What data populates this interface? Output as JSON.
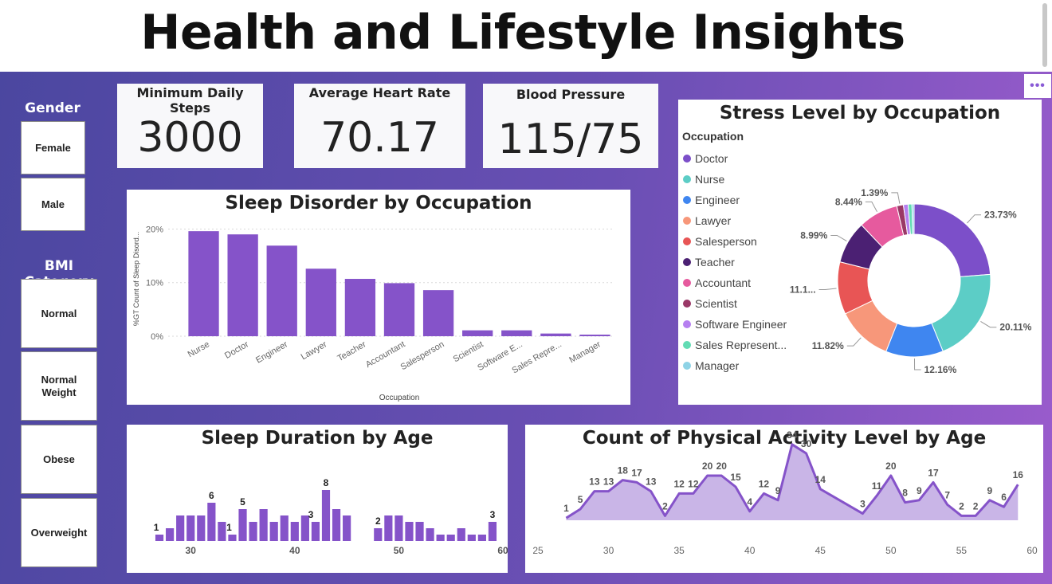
{
  "header": {
    "title": "Health and Lifestyle Insights"
  },
  "slicers": {
    "gender": {
      "title": "Gender",
      "options": [
        "Female",
        "Male"
      ]
    },
    "bmi": {
      "title": "BMI Category",
      "options": [
        "Normal",
        "Normal Weight",
        "Obese",
        "Overweight"
      ]
    }
  },
  "cards": {
    "steps": {
      "label": "Minimum Daily Steps",
      "value": "3000"
    },
    "heart": {
      "label": "Average Heart Rate",
      "value": "70.17"
    },
    "bp": {
      "label": "Blood Pressure",
      "value": "115/75"
    }
  },
  "more_options": "•••",
  "colors": {
    "bar": "#8553c9",
    "line": "#8553c9",
    "area": "#c9b5e7"
  },
  "sleep_disorder": {
    "title": "Sleep Disorder by Occupation",
    "chart_data": {
      "type": "bar",
      "title": "Sleep Disorder by Occupation",
      "categories": [
        "Nurse",
        "Doctor",
        "Engineer",
        "Lawyer",
        "Teacher",
        "Accountant",
        "Salesperson",
        "Scientist",
        "Software E...",
        "Sales Repre...",
        "Manager"
      ],
      "values": [
        19.6,
        19.0,
        16.9,
        12.6,
        10.7,
        9.9,
        8.6,
        1.1,
        1.1,
        0.5,
        0.3
      ],
      "xlabel": "Occupation",
      "ylabel": "%GT Count of Sleep Disord...",
      "yticks": [
        "0%",
        "10%",
        "20%"
      ],
      "ylim": [
        0,
        22
      ],
      "grid": true
    }
  },
  "stress": {
    "title": "Stress Level by Occupation",
    "legend_title": "Occupation",
    "chart_data": {
      "type": "pie",
      "title": "Stress Level by Occupation",
      "labels": [
        "Doctor",
        "Nurse",
        "Engineer",
        "Lawyer",
        "Salesperson",
        "Teacher",
        "Accountant",
        "Scientist",
        "Software Engineer",
        "Sales Represent...",
        "Manager"
      ],
      "values": [
        23.73,
        20.11,
        12.16,
        11.82,
        11.1,
        8.99,
        8.44,
        1.39,
        1.0,
        0.8,
        0.46
      ],
      "data_labels": [
        "23.73%",
        "20.11%",
        "12.16%",
        "11.82%",
        "11.1...",
        "8.99%",
        "8.44%",
        "1.39%",
        "",
        "",
        ""
      ],
      "colors": [
        "#7c4fc9",
        "#5ccdc6",
        "#3f86f0",
        "#f7977a",
        "#e85555",
        "#4b2073",
        "#e65a9e",
        "#9a3867",
        "#b67ff0",
        "#62dcb4",
        "#8ed3e6"
      ],
      "legend": "left"
    }
  },
  "sleep_duration": {
    "title": "Sleep Duration by Age",
    "chart_data": {
      "type": "bar",
      "title": "Sleep Duration by Age",
      "x": [
        27,
        28,
        29,
        30,
        31,
        32,
        33,
        34,
        35,
        36,
        37,
        38,
        39,
        40,
        41,
        42,
        43,
        44,
        45,
        48,
        49,
        50,
        51,
        52,
        53,
        54,
        55,
        56,
        57,
        58,
        59
      ],
      "values": [
        1,
        2,
        4,
        4,
        4,
        6,
        3,
        1,
        5,
        3,
        5,
        3,
        4,
        3,
        4,
        3,
        8,
        5,
        4,
        2,
        4,
        4,
        3,
        3,
        2,
        1,
        1,
        2,
        1,
        1,
        3
      ],
      "labels": {
        "27": "1",
        "32": "6",
        "34": "1",
        "35": "5",
        "42": "3",
        "43": "8",
        "48": "2",
        "59": "3"
      },
      "xticks": [
        "30",
        "40",
        "50",
        "60"
      ],
      "xlim": [
        26,
        60
      ]
    }
  },
  "activity": {
    "title": "Count of Physical Activity Level by Age",
    "chart_data": {
      "type": "area",
      "title": "Count of Physical Activity Level by Age",
      "x": [
        27,
        28,
        29,
        30,
        31,
        32,
        33,
        34,
        35,
        36,
        37,
        38,
        39,
        40,
        41,
        42,
        43,
        44,
        45,
        48,
        49,
        50,
        51,
        52,
        53,
        54,
        55,
        56,
        57,
        58,
        59
      ],
      "values": [
        1,
        5,
        13,
        13,
        18,
        17,
        13,
        2,
        12,
        12,
        20,
        20,
        15,
        4,
        12,
        9,
        34,
        30,
        14,
        3,
        11,
        20,
        8,
        9,
        17,
        7,
        2,
        2,
        9,
        6,
        16
      ],
      "xticks": [
        "25",
        "30",
        "35",
        "40",
        "45",
        "50",
        "55",
        "60"
      ],
      "xlim": [
        25,
        60
      ]
    }
  }
}
